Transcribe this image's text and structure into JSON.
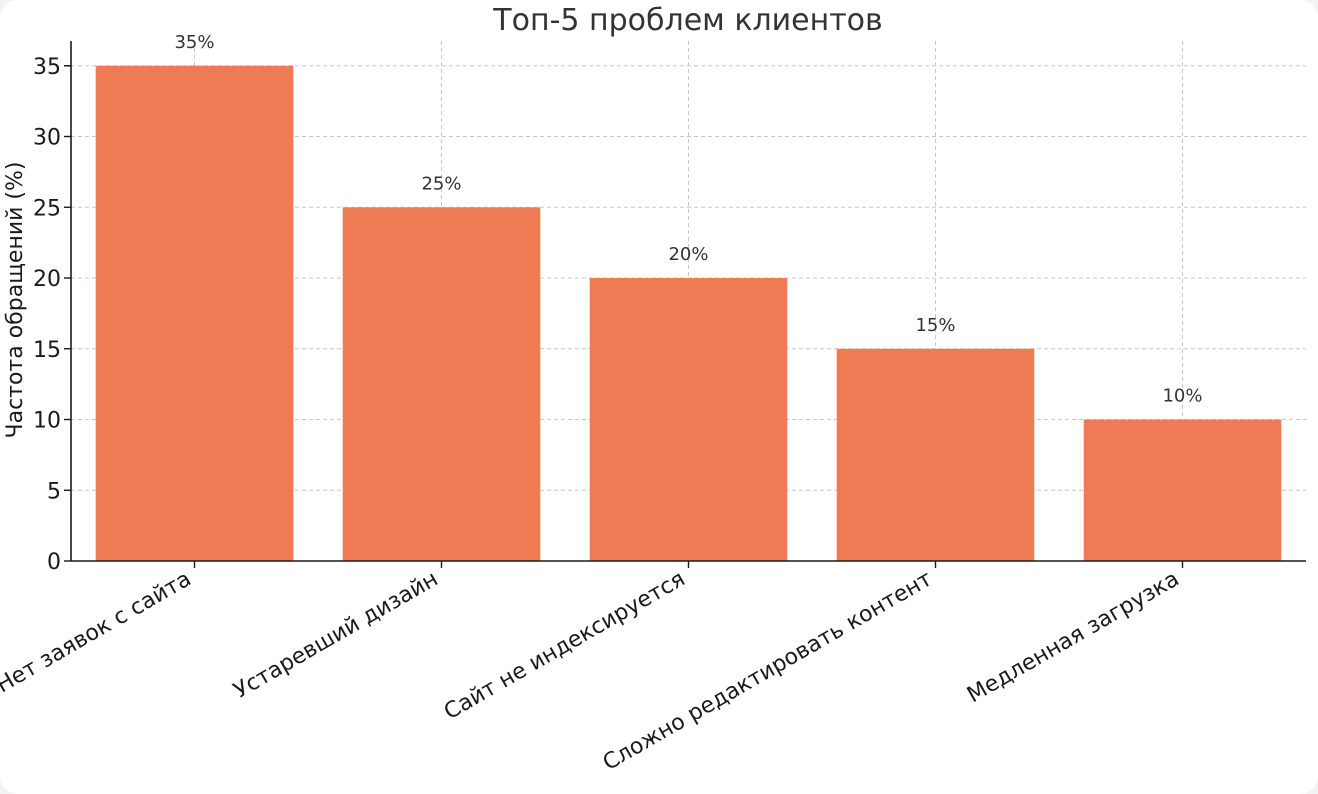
{
  "chart_data": {
    "type": "bar",
    "title": "Топ-5 проблем клиентов",
    "xlabel": "",
    "ylabel": "Частота обращений (%)",
    "categories": [
      "Нет заявок с сайта",
      "Устаревший дизайн",
      "Сайт не индексируется",
      "Сложно редактировать контент",
      "Медленная загрузка"
    ],
    "values": [
      35,
      25,
      20,
      15,
      10
    ],
    "data_labels": [
      "35%",
      "25%",
      "20%",
      "15%",
      "10%"
    ],
    "ylim": [
      0,
      36.75
    ],
    "yticks": [
      0,
      5,
      10,
      15,
      20,
      25,
      30,
      35
    ],
    "grid": true,
    "bar_color": "#ee7b53"
  }
}
